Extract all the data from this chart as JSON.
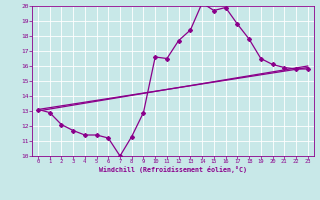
{
  "background_color": "#c8e8e8",
  "grid_color": "#ffffff",
  "line_color": "#8b008b",
  "xlabel": "Windchill (Refroidissement éolien,°C)",
  "xlim": [
    -0.5,
    23.5
  ],
  "ylim": [
    10,
    20
  ],
  "yticks": [
    10,
    11,
    12,
    13,
    14,
    15,
    16,
    17,
    18,
    19,
    20
  ],
  "xticks": [
    0,
    1,
    2,
    3,
    4,
    5,
    6,
    7,
    8,
    9,
    10,
    11,
    12,
    13,
    14,
    15,
    16,
    17,
    18,
    19,
    20,
    21,
    22,
    23
  ],
  "line1_x": [
    0,
    1,
    2,
    3,
    4,
    5,
    6,
    7,
    8,
    9,
    10,
    11,
    12,
    13,
    14,
    15,
    16,
    17,
    18,
    19,
    20,
    21,
    22,
    23
  ],
  "line1_y": [
    13.1,
    12.9,
    12.1,
    11.7,
    11.4,
    11.4,
    11.2,
    10.0,
    11.3,
    12.9,
    16.6,
    16.5,
    17.7,
    18.4,
    20.2,
    19.7,
    19.9,
    18.8,
    17.8,
    16.5,
    16.1,
    15.9,
    15.8,
    15.8
  ],
  "line2_x": [
    0,
    23
  ],
  "line2_y": [
    13.1,
    15.9
  ],
  "line3_x": [
    0,
    23
  ],
  "line3_y": [
    13.0,
    16.0
  ],
  "marker": "D",
  "marker_size": 2,
  "line_width": 0.9
}
